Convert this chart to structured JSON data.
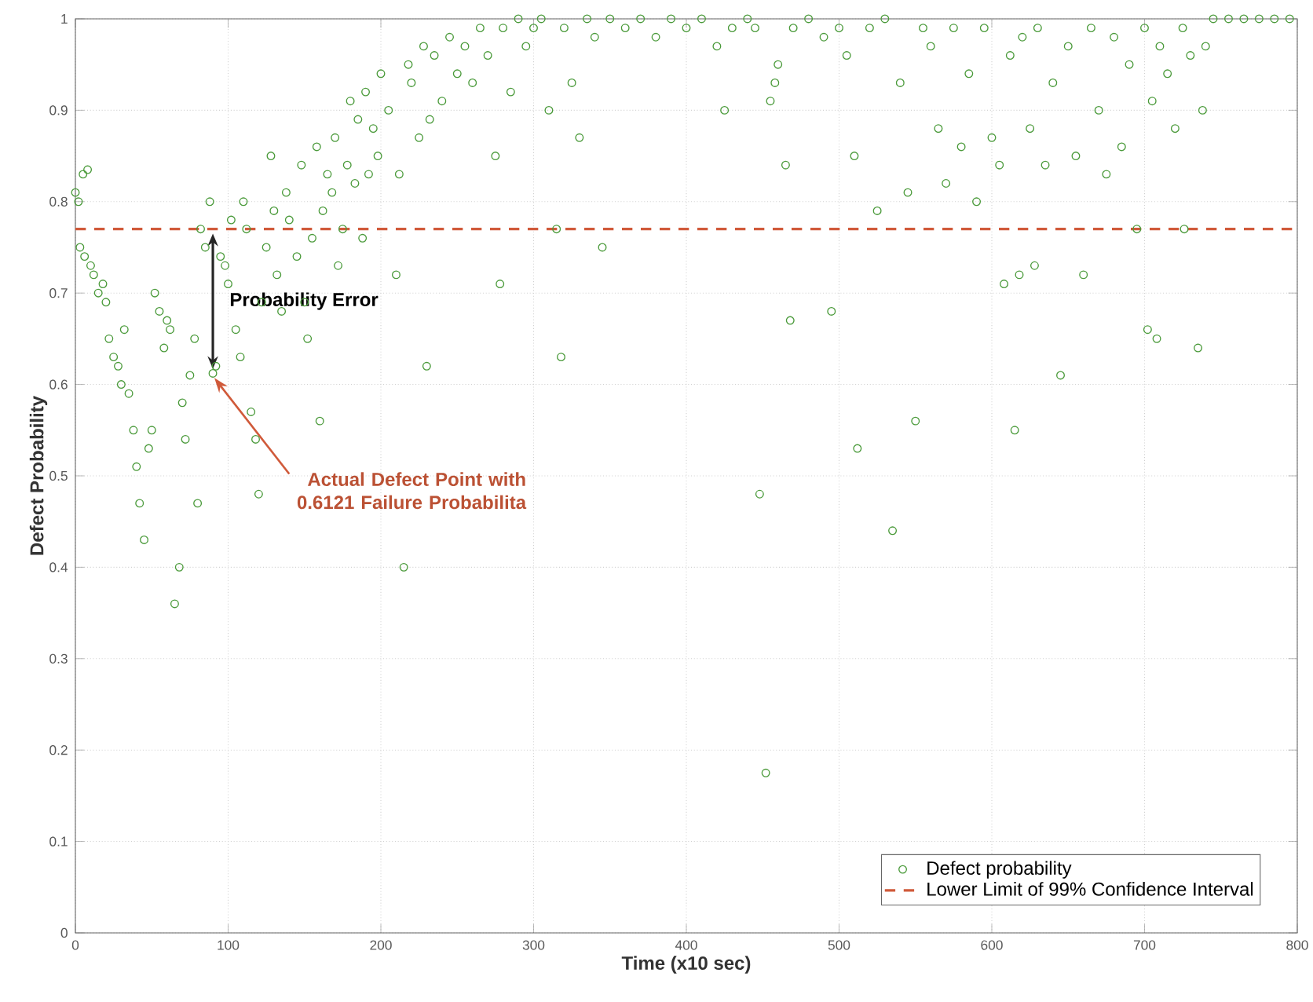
{
  "chart_data": {
    "type": "scatter",
    "xlabel": "Time (x10 sec)",
    "ylabel": "Defect Probability",
    "xlim": [
      0,
      800
    ],
    "ylim": [
      0,
      1
    ],
    "xticks": [
      0,
      100,
      200,
      300,
      400,
      500,
      600,
      700,
      800
    ],
    "yticks": [
      0,
      0.1,
      0.2,
      0.3,
      0.4,
      0.5,
      0.6,
      0.7,
      0.8,
      0.9,
      1
    ],
    "grid": true,
    "legend": "bottom right",
    "marker": "circle",
    "series": [
      {
        "name": "Defect probability",
        "color": "#4a9a3a",
        "x": [
          0,
          2,
          5,
          8,
          3,
          6,
          10,
          12,
          15,
          18,
          20,
          22,
          25,
          28,
          30,
          32,
          35,
          38,
          40,
          42,
          45,
          48,
          50,
          52,
          55,
          58,
          60,
          62,
          65,
          68,
          70,
          72,
          75,
          78,
          80,
          82,
          85,
          88,
          90,
          92,
          95,
          98,
          100,
          102,
          105,
          108,
          110,
          112,
          115,
          118,
          120,
          122,
          125,
          128,
          130,
          132,
          135,
          138,
          140,
          145,
          148,
          150,
          152,
          155,
          158,
          160,
          162,
          165,
          168,
          170,
          172,
          175,
          178,
          180,
          183,
          185,
          188,
          190,
          192,
          195,
          198,
          200,
          205,
          210,
          212,
          215,
          218,
          220,
          225,
          228,
          230,
          232,
          235,
          240,
          245,
          250,
          255,
          260,
          265,
          270,
          275,
          278,
          280,
          285,
          290,
          295,
          300,
          305,
          310,
          315,
          318,
          320,
          325,
          330,
          335,
          340,
          345,
          350,
          360,
          370,
          380,
          390,
          400,
          410,
          420,
          425,
          430,
          440,
          445,
          448,
          452,
          455,
          458,
          460,
          465,
          468,
          470,
          480,
          490,
          495,
          500,
          505,
          510,
          512,
          520,
          525,
          530,
          535,
          540,
          545,
          550,
          555,
          560,
          565,
          570,
          575,
          580,
          585,
          590,
          595,
          600,
          605,
          608,
          612,
          615,
          618,
          620,
          625,
          628,
          630,
          635,
          640,
          645,
          650,
          655,
          660,
          665,
          670,
          675,
          680,
          685,
          690,
          695,
          700,
          702,
          705,
          708,
          710,
          715,
          720,
          725,
          726,
          730,
          735,
          738,
          740,
          745,
          755,
          765,
          775,
          785,
          795
        ],
        "values": [
          0.81,
          0.8,
          0.83,
          0.835,
          0.75,
          0.74,
          0.73,
          0.72,
          0.7,
          0.71,
          0.69,
          0.65,
          0.63,
          0.62,
          0.6,
          0.66,
          0.59,
          0.55,
          0.51,
          0.47,
          0.43,
          0.53,
          0.55,
          0.7,
          0.68,
          0.64,
          0.67,
          0.66,
          0.36,
          0.4,
          0.58,
          0.54,
          0.61,
          0.65,
          0.47,
          0.77,
          0.75,
          0.8,
          0.6121,
          0.62,
          0.74,
          0.73,
          0.71,
          0.78,
          0.66,
          0.63,
          0.8,
          0.77,
          0.57,
          0.54,
          0.48,
          0.69,
          0.75,
          0.85,
          0.79,
          0.72,
          0.68,
          0.81,
          0.78,
          0.74,
          0.84,
          0.69,
          0.65,
          0.76,
          0.86,
          0.56,
          0.79,
          0.83,
          0.81,
          0.87,
          0.73,
          0.77,
          0.84,
          0.91,
          0.82,
          0.89,
          0.76,
          0.92,
          0.83,
          0.88,
          0.85,
          0.94,
          0.9,
          0.72,
          0.83,
          0.4,
          0.95,
          0.93,
          0.87,
          0.97,
          0.62,
          0.89,
          0.96,
          0.91,
          0.98,
          0.94,
          0.97,
          0.93,
          0.99,
          0.96,
          0.85,
          0.71,
          0.99,
          0.92,
          1.0,
          0.97,
          0.99,
          1.0,
          0.9,
          0.77,
          0.63,
          0.99,
          0.93,
          0.87,
          1.0,
          0.98,
          0.75,
          1.0,
          0.99,
          1.0,
          0.98,
          1.0,
          0.99,
          1.0,
          0.97,
          0.9,
          0.99,
          1.0,
          0.99,
          0.48,
          0.175,
          0.91,
          0.93,
          0.95,
          0.84,
          0.67,
          0.99,
          1.0,
          0.98,
          0.68,
          0.99,
          0.96,
          0.85,
          0.53,
          0.99,
          0.79,
          1.0,
          0.44,
          0.93,
          0.81,
          0.56,
          0.99,
          0.97,
          0.88,
          0.82,
          0.99,
          0.86,
          0.94,
          0.8,
          0.99,
          0.87,
          0.84,
          0.71,
          0.96,
          0.55,
          0.72,
          0.98,
          0.88,
          0.73,
          0.99,
          0.84,
          0.93,
          0.61,
          0.97,
          0.85,
          0.72,
          0.99,
          0.9,
          0.83,
          0.98,
          0.86,
          0.95,
          0.77,
          0.99,
          0.66,
          0.91,
          0.65,
          0.97,
          0.94,
          0.88,
          0.99,
          0.77,
          0.96,
          0.64,
          0.9,
          0.97,
          1.0,
          1.0,
          1.0,
          1.0,
          1.0,
          1.0
        ]
      }
    ],
    "ref_lines": [
      {
        "axis": "y",
        "value": 0.77,
        "label": "Lower Limit of 99% Confidence Interval",
        "color": "#d05a3a",
        "line_style": "dashed"
      }
    ],
    "annotations": [
      "Probability Error",
      {
        "text": "Actual Defect Point with 0.6121 Failure Probabilita",
        "x": 90,
        "y": 0.6121
      }
    ]
  }
}
